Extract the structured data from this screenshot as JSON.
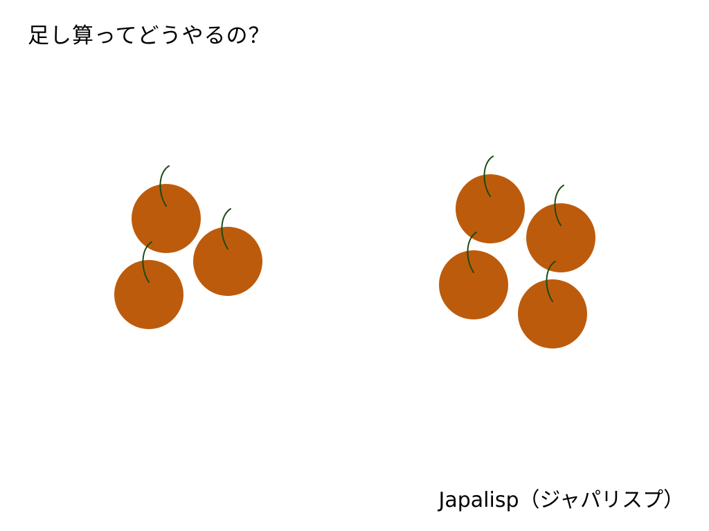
{
  "slide": {
    "title": "足し算ってどうやるの？",
    "footer": "Japalisp（ジャパリスプ）"
  },
  "colors": {
    "background": "#ffffff",
    "fruit": "#bd5b0c",
    "stem": "#1a4a12",
    "text": "#000000"
  },
  "icons": {
    "fruit": "persimmon-icon",
    "stem": "stem-icon"
  },
  "groups": [
    {
      "name": "left-group",
      "count": 3
    },
    {
      "name": "right-group",
      "count": 4
    }
  ]
}
